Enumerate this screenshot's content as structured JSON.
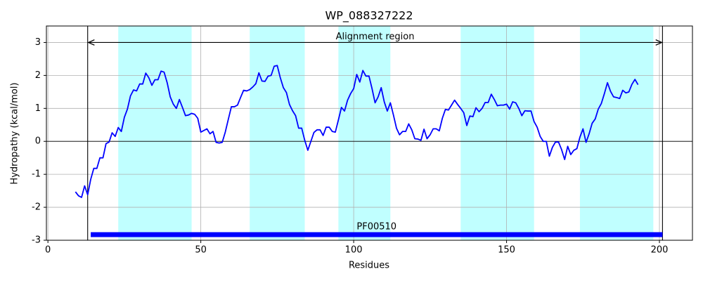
{
  "chart_data": {
    "type": "line",
    "title": "WP_088327222",
    "xlabel": "Residues",
    "ylabel": "Hydropathy (kcal/mol)",
    "x": [
      9,
      10,
      11,
      12,
      13,
      14,
      15,
      16,
      17,
      18,
      19,
      20,
      21,
      22,
      23,
      24,
      25,
      26,
      27,
      28,
      29,
      30,
      31,
      32,
      33,
      34,
      35,
      36,
      37,
      38,
      39,
      40,
      41,
      42,
      43,
      44,
      45,
      46,
      47,
      48,
      49,
      50,
      51,
      52,
      53,
      54,
      55,
      56,
      57,
      58,
      59,
      60,
      61,
      62,
      63,
      64,
      65,
      66,
      67,
      68,
      69,
      70,
      71,
      72,
      73,
      74,
      75,
      76,
      77,
      78,
      79,
      80,
      81,
      82,
      83,
      84,
      85,
      86,
      87,
      88,
      89,
      90,
      91,
      92,
      93,
      94,
      95,
      96,
      97,
      98,
      99,
      100,
      101,
      102,
      103,
      104,
      105,
      106,
      107,
      108,
      109,
      110,
      111,
      112,
      113,
      114,
      115,
      116,
      117,
      118,
      119,
      120,
      121,
      122,
      123,
      124,
      125,
      126,
      127,
      128,
      129,
      130,
      131,
      132,
      133,
      134,
      135,
      136,
      137,
      138,
      139,
      140,
      141,
      142,
      143,
      144,
      145,
      146,
      147,
      148,
      149,
      150,
      151,
      152,
      153,
      154,
      155,
      156,
      157,
      158,
      159,
      160,
      161,
      162,
      163,
      164,
      165,
      166,
      167,
      168,
      169,
      170,
      171,
      172,
      173,
      174,
      175,
      176,
      177,
      178,
      179,
      180,
      181,
      182,
      183,
      184,
      185,
      186,
      187,
      188,
      189,
      190,
      191,
      192,
      193
    ],
    "values": [
      -1.53,
      -1.65,
      -1.7,
      -1.35,
      -1.62,
      -1.15,
      -0.82,
      -0.82,
      -0.5,
      -0.5,
      -0.07,
      -0.02,
      0.26,
      0.15,
      0.42,
      0.3,
      0.73,
      0.98,
      1.38,
      1.56,
      1.53,
      1.74,
      1.74,
      2.07,
      1.93,
      1.7,
      1.87,
      1.87,
      2.13,
      2.1,
      1.78,
      1.35,
      1.13,
      1.0,
      1.27,
      1.03,
      0.78,
      0.8,
      0.85,
      0.82,
      0.7,
      0.28,
      0.33,
      0.38,
      0.23,
      0.3,
      -0.03,
      -0.05,
      -0.03,
      0.28,
      0.67,
      1.05,
      1.05,
      1.1,
      1.33,
      1.55,
      1.53,
      1.57,
      1.65,
      1.75,
      2.08,
      1.83,
      1.82,
      1.98,
      2.0,
      2.28,
      2.3,
      1.93,
      1.63,
      1.48,
      1.12,
      0.93,
      0.78,
      0.4,
      0.4,
      0.03,
      -0.27,
      0.0,
      0.27,
      0.35,
      0.35,
      0.18,
      0.43,
      0.43,
      0.3,
      0.28,
      0.65,
      1.03,
      0.92,
      1.25,
      1.45,
      1.6,
      2.03,
      1.8,
      2.15,
      1.98,
      1.98,
      1.6,
      1.17,
      1.35,
      1.63,
      1.2,
      0.92,
      1.17,
      0.8,
      0.4,
      0.2,
      0.3,
      0.3,
      0.53,
      0.35,
      0.08,
      0.07,
      0.03,
      0.37,
      0.08,
      0.2,
      0.38,
      0.38,
      0.32,
      0.7,
      0.97,
      0.95,
      1.1,
      1.25,
      1.12,
      1.0,
      0.87,
      0.48,
      0.77,
      0.75,
      1.02,
      0.9,
      1.0,
      1.18,
      1.18,
      1.43,
      1.27,
      1.08,
      1.1,
      1.1,
      1.13,
      0.98,
      1.2,
      1.17,
      1.0,
      0.78,
      0.93,
      0.92,
      0.92,
      0.6,
      0.43,
      0.15,
      0.0,
      0.0,
      -0.45,
      -0.18,
      -0.02,
      -0.02,
      -0.25,
      -0.55,
      -0.15,
      -0.4,
      -0.27,
      -0.22,
      0.13,
      0.38,
      -0.03,
      0.23,
      0.55,
      0.68,
      0.98,
      1.15,
      1.45,
      1.78,
      1.52,
      1.35,
      1.33,
      1.3,
      1.55,
      1.47,
      1.5,
      1.73,
      1.88,
      1.72
    ],
    "color": "#0000ff",
    "xlim": [
      -0.5,
      210.8
    ],
    "ylim": [
      -3,
      3.5
    ],
    "xticks": [
      0,
      50,
      100,
      150,
      200
    ],
    "yticks": [
      -3,
      -2,
      -1,
      0,
      1,
      2,
      3
    ],
    "grid": true,
    "hline": 0,
    "spans": [
      [
        23,
        47
      ],
      [
        66,
        84
      ],
      [
        95,
        112
      ],
      [
        135,
        159
      ],
      [
        174,
        198
      ]
    ],
    "span_color": "#c0ffff",
    "vlines": [
      13,
      201
    ],
    "annotation": {
      "text": "Alignment region",
      "x": [
        13,
        201
      ],
      "y": 3
    },
    "domain": {
      "label": "PF00510",
      "x": [
        14,
        201
      ],
      "y": -2.83,
      "color": "#0000ff"
    }
  }
}
